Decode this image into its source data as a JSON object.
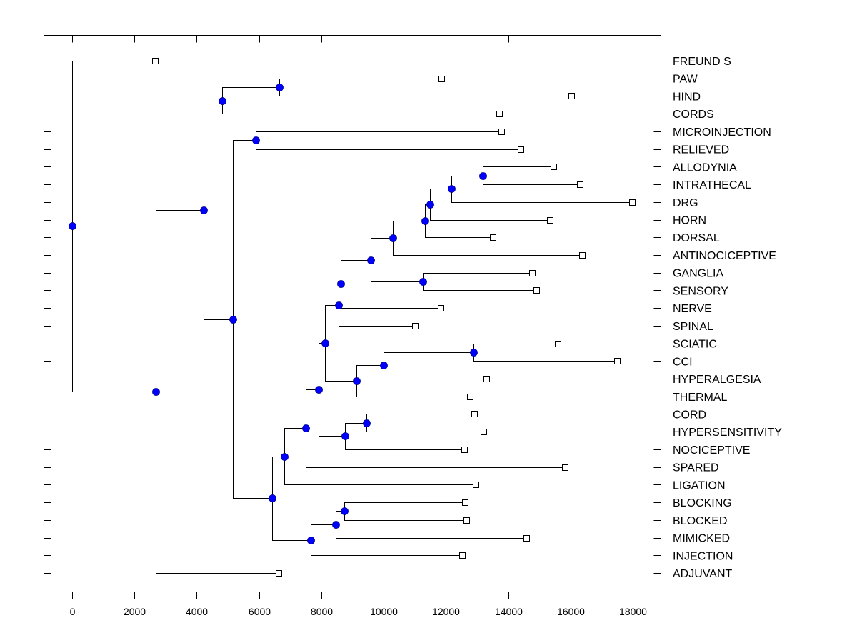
{
  "chart_data": {
    "type": "dendrogram",
    "title": "",
    "xlabel": "",
    "ylabel": "",
    "xlim": [
      -900,
      18900
    ],
    "x_ticks": [
      0,
      2000,
      4000,
      6000,
      8000,
      10000,
      12000,
      14000,
      16000,
      18000
    ],
    "x_tick_labels": [
      "0",
      "2000",
      "4000",
      "6000",
      "8000",
      "10000",
      "12000",
      "14000",
      "16000",
      "18000"
    ],
    "grid": false,
    "colors": {
      "node": "#0000ff",
      "line": "#000000",
      "leaf": "#ffffff"
    },
    "leaves": [
      {
        "label": "FREUND S",
        "x": 2680
      },
      {
        "label": "PAW",
        "x": 11880
      },
      {
        "label": "HIND",
        "x": 16050
      },
      {
        "label": "CORDS",
        "x": 13740
      },
      {
        "label": "MICROINJECTION",
        "x": 13800
      },
      {
        "label": "RELIEVED",
        "x": 14420
      },
      {
        "label": "ALLODYNIA",
        "x": 15480
      },
      {
        "label": "INTRATHECAL",
        "x": 16330
      },
      {
        "label": "DRG",
        "x": 18000
      },
      {
        "label": "HORN",
        "x": 15360
      },
      {
        "label": "DORSAL",
        "x": 13530
      },
      {
        "label": "ANTINOCICEPTIVE",
        "x": 16400
      },
      {
        "label": "GANGLIA",
        "x": 14790
      },
      {
        "label": "SENSORY",
        "x": 14930
      },
      {
        "label": "NERVE",
        "x": 11860
      },
      {
        "label": "SPINAL",
        "x": 11030
      },
      {
        "label": "SCIATIC",
        "x": 15620
      },
      {
        "label": "CCI",
        "x": 17520
      },
      {
        "label": "HYPERALGESIA",
        "x": 13320
      },
      {
        "label": "THERMAL",
        "x": 12790
      },
      {
        "label": "CORD",
        "x": 12930
      },
      {
        "label": "HYPERSENSITIVITY",
        "x": 13230
      },
      {
        "label": "NOCICEPTIVE",
        "x": 12610
      },
      {
        "label": "SPARED",
        "x": 15840
      },
      {
        "label": "LIGATION",
        "x": 12980
      },
      {
        "label": "BLOCKING",
        "x": 12630
      },
      {
        "label": "BLOCKED",
        "x": 12680
      },
      {
        "label": "MIMICKED",
        "x": 14610
      },
      {
        "label": "INJECTION",
        "x": 12540
      },
      {
        "label": "ADJUVANT",
        "x": 6650
      }
    ],
    "tree": {
      "x": 0,
      "children": [
        {
          "leaf": 0
        },
        {
          "x": 2680,
          "children": [
            {
              "x": 4220,
              "children": [
                {
                  "x": 4810,
                  "children": [
                    {
                      "x": 6650,
                      "children": [
                        {
                          "leaf": 1
                        },
                        {
                          "leaf": 2
                        }
                      ]
                    },
                    {
                      "leaf": 3
                    }
                  ]
                },
                {
                  "x": 5160,
                  "children": [
                    {
                      "x": 5900,
                      "children": [
                        {
                          "leaf": 4
                        },
                        {
                          "leaf": 5
                        }
                      ]
                    },
                    {
                      "x": 6420,
                      "children": [
                        {
                          "x": 6810,
                          "children": [
                            {
                              "x": 7500,
                              "children": [
                                {
                                  "x": 7910,
                                  "children": [
                                    {
                                      "x": 8120,
                                      "children": [
                                        {
                                          "x": 8550,
                                          "children": [
                                            {
                                              "x": 8620,
                                              "children": [
                                                {
                                                  "x": 9580,
                                                  "children": [
                                                    {
                                                      "x": 10290,
                                                      "children": [
                                                        {
                                                          "x": 11330,
                                                          "children": [
                                                            {
                                                              "x": 11490,
                                                              "children": [
                                                                {
                                                                  "x": 12180,
                                                                  "children": [
                                                                    {
                                                                      "x": 13180,
                                                                      "children": [
                                                                        {
                                                                          "leaf": 6
                                                                        },
                                                                        {
                                                                          "leaf": 7
                                                                        }
                                                                      ]
                                                                    },
                                                                    {
                                                                      "leaf": 8
                                                                    }
                                                                  ]
                                                                },
                                                                {
                                                                  "leaf": 9
                                                                }
                                                              ]
                                                            },
                                                            {
                                                              "leaf": 10
                                                            }
                                                          ]
                                                        },
                                                        {
                                                          "leaf": 11
                                                        }
                                                      ]
                                                    },
                                                    {
                                                      "x": 11250,
                                                      "children": [
                                                        {
                                                          "leaf": 12
                                                        },
                                                        {
                                                          "leaf": 13
                                                        }
                                                      ]
                                                    }
                                                  ]
                                                },
                                                {
                                                  "leaf": 14
                                                }
                                              ]
                                            },
                                            {
                                              "leaf": 15
                                            }
                                          ]
                                        },
                                        {
                                          "x": 9130,
                                          "children": [
                                            {
                                              "x": 10000,
                                              "children": [
                                                {
                                                  "x": 12890,
                                                  "children": [
                                                    {
                                                      "leaf": 16
                                                    },
                                                    {
                                                      "leaf": 17
                                                    }
                                                  ]
                                                },
                                                {
                                                  "leaf": 18
                                                }
                                              ]
                                            },
                                            {
                                              "leaf": 19
                                            }
                                          ]
                                        }
                                      ]
                                    },
                                    {
                                      "x": 8760,
                                      "children": [
                                        {
                                          "x": 9450,
                                          "children": [
                                            {
                                              "leaf": 20
                                            },
                                            {
                                              "leaf": 21
                                            }
                                          ]
                                        },
                                        {
                                          "leaf": 22
                                        }
                                      ]
                                    }
                                  ]
                                },
                                {
                                  "leaf": 23
                                }
                              ]
                            },
                            {
                              "leaf": 24
                            }
                          ]
                        },
                        {
                          "x": 7660,
                          "children": [
                            {
                              "x": 8470,
                              "children": [
                                {
                                  "x": 8740,
                                  "children": [
                                    {
                                      "leaf": 25
                                    },
                                    {
                                      "leaf": 26
                                    }
                                  ]
                                },
                                {
                                  "leaf": 27
                                }
                              ]
                            },
                            {
                              "leaf": 28
                            }
                          ]
                        }
                      ]
                    }
                  ]
                }
              ]
            },
            {
              "leaf": 29
            }
          ]
        }
      ]
    }
  }
}
